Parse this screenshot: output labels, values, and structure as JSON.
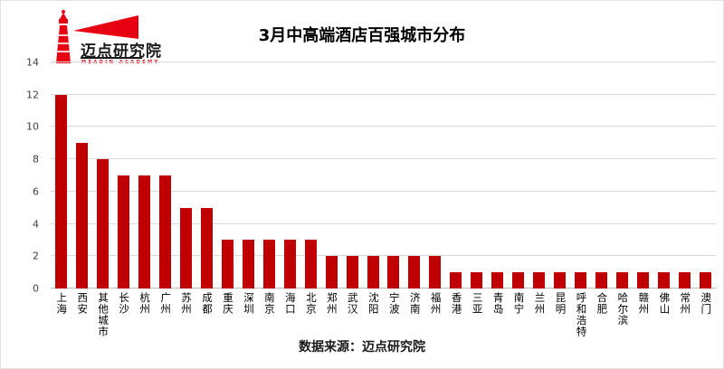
{
  "logo": {
    "name": "迈点研究院",
    "subtitle": "MEADIN ACADEMY",
    "icon": "lighthouse-with-beam",
    "color": "#e60012"
  },
  "title": "3月中高端酒店百强城市分布",
  "source": "数据来源：迈点研究院",
  "chart_data": {
    "type": "bar",
    "title": "3月中高端酒店百强城市分布",
    "categories": [
      "上海",
      "西安",
      "其他城市",
      "长沙",
      "杭州",
      "广州",
      "苏州",
      "成都",
      "重庆",
      "深圳",
      "南京",
      "海口",
      "北京",
      "郑州",
      "武汉",
      "沈阳",
      "宁波",
      "济南",
      "福州",
      "香港",
      "三亚",
      "青岛",
      "南宁",
      "兰州",
      "昆明",
      "呼和浩特",
      "合肥",
      "哈尔滨",
      "赣州",
      "佛山",
      "常州",
      "澳门"
    ],
    "values": [
      12,
      9,
      8,
      7,
      7,
      7,
      5,
      5,
      3,
      3,
      3,
      3,
      3,
      2,
      2,
      2,
      2,
      2,
      2,
      1,
      1,
      1,
      1,
      1,
      1,
      1,
      1,
      1,
      1,
      1,
      1,
      1
    ],
    "xlabel": "",
    "ylabel": "",
    "ylim": [
      0,
      14
    ],
    "ytick_step": 2,
    "yticks": [
      0,
      2,
      4,
      6,
      8,
      10,
      12,
      14
    ],
    "grid": true,
    "legend": "none",
    "bar_color": "#c00000",
    "gridline_color": "#d9d9d9",
    "baseline_color": "#bfbfbf",
    "axis_text_color": "#404040"
  }
}
